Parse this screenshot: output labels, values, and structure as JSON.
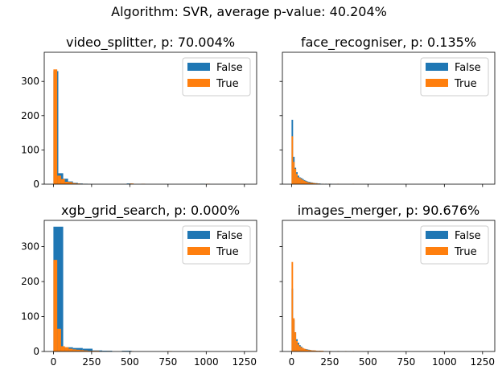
{
  "figure": {
    "suptitle": "Algorithm: SVR, average p-value: 40.204%"
  },
  "colors": {
    "false": "#1f77b4",
    "true": "#ff7f0e"
  },
  "chart_data": [
    {
      "type": "bar",
      "title": "video_splitter, p: 70.004%",
      "xlim": [
        -60,
        1330
      ],
      "ylim": [
        0,
        385
      ],
      "xticks": [
        0,
        250,
        500,
        750,
        1000,
        1250
      ],
      "yticks": [
        0,
        100,
        200,
        300
      ],
      "show_xticklabels": false,
      "show_yticklabels": true,
      "legend_position": "upper right",
      "series": [
        {
          "name": "False",
          "color": "#1f77b4",
          "bin_width": 32,
          "bins": [
            [
              0,
              330
            ],
            [
              32,
              32
            ],
            [
              64,
              16
            ],
            [
              96,
              8
            ],
            [
              128,
              4
            ],
            [
              160,
              2
            ],
            [
              192,
              1
            ],
            [
              480,
              2
            ],
            [
              960,
              1
            ]
          ]
        },
        {
          "name": "True",
          "color": "#ff7f0e",
          "bin_width": 25,
          "bins": [
            [
              0,
              335
            ],
            [
              25,
              25
            ],
            [
              50,
              15
            ],
            [
              75,
              7
            ],
            [
              100,
              6
            ],
            [
              125,
              3
            ],
            [
              150,
              2
            ],
            [
              175,
              1
            ],
            [
              500,
              2
            ],
            [
              575,
              1
            ],
            [
              1000,
              1
            ]
          ]
        }
      ]
    },
    {
      "type": "bar",
      "title": "face_recogniser, p: 0.135%",
      "xlim": [
        -60,
        1330
      ],
      "ylim": [
        0,
        385
      ],
      "xticks": [
        0,
        250,
        500,
        750,
        1000,
        1250
      ],
      "yticks": [
        0,
        100,
        200,
        300
      ],
      "show_xticklabels": false,
      "show_yticklabels": false,
      "legend_position": "upper right",
      "series": [
        {
          "name": "False",
          "color": "#1f77b4",
          "bin_width": 10,
          "bins": [
            [
              0,
              188
            ],
            [
              10,
              80
            ],
            [
              20,
              48
            ],
            [
              30,
              35
            ],
            [
              40,
              25
            ],
            [
              50,
              20
            ],
            [
              60,
              18
            ],
            [
              70,
              15
            ],
            [
              80,
              12
            ],
            [
              90,
              10
            ],
            [
              100,
              8
            ],
            [
              110,
              7
            ],
            [
              120,
              6
            ],
            [
              130,
              5
            ],
            [
              140,
              4
            ],
            [
              150,
              3
            ],
            [
              160,
              3
            ],
            [
              170,
              2
            ],
            [
              180,
              2
            ],
            [
              190,
              1
            ],
            [
              200,
              1
            ],
            [
              220,
              1
            ],
            [
              250,
              1
            ]
          ]
        },
        {
          "name": "True",
          "color": "#ff7f0e",
          "bin_width": 10,
          "bins": [
            [
              0,
              140
            ],
            [
              10,
              65
            ],
            [
              20,
              45
            ],
            [
              30,
              30
            ],
            [
              40,
              20
            ],
            [
              50,
              18
            ],
            [
              60,
              15
            ],
            [
              70,
              12
            ],
            [
              80,
              10
            ],
            [
              90,
              8
            ],
            [
              100,
              6
            ],
            [
              110,
              5
            ],
            [
              120,
              4
            ],
            [
              130,
              4
            ],
            [
              140,
              3
            ],
            [
              150,
              3
            ],
            [
              160,
              2
            ],
            [
              170,
              2
            ],
            [
              180,
              1
            ],
            [
              200,
              1
            ],
            [
              240,
              1
            ],
            [
              300,
              1
            ],
            [
              400,
              1
            ]
          ]
        }
      ]
    },
    {
      "type": "bar",
      "title": "xgb_grid_search, p: 0.000%",
      "xlim": [
        -60,
        1330
      ],
      "ylim": [
        0,
        375
      ],
      "xticks": [
        0,
        250,
        500,
        750,
        1000,
        1250
      ],
      "yticks": [
        0,
        100,
        200,
        300
      ],
      "show_xticklabels": true,
      "show_yticklabels": true,
      "legend_position": "upper right",
      "series": [
        {
          "name": "False",
          "color": "#1f77b4",
          "bin_width": 64,
          "bins": [
            [
              0,
              357
            ],
            [
              64,
              12
            ],
            [
              128,
              10
            ],
            [
              192,
              8
            ],
            [
              256,
              3
            ],
            [
              320,
              2
            ],
            [
              448,
              2
            ]
          ]
        },
        {
          "name": "True",
          "color": "#ff7f0e",
          "bin_width": 25,
          "bins": [
            [
              0,
              262
            ],
            [
              25,
              65
            ],
            [
              50,
              15
            ],
            [
              75,
              12
            ],
            [
              100,
              8
            ],
            [
              125,
              6
            ],
            [
              150,
              5
            ],
            [
              175,
              4
            ],
            [
              200,
              3
            ],
            [
              225,
              2
            ],
            [
              250,
              2
            ],
            [
              275,
              2
            ],
            [
              300,
              1
            ],
            [
              350,
              1
            ],
            [
              450,
              1
            ],
            [
              500,
              1
            ],
            [
              750,
              1
            ]
          ]
        }
      ]
    },
    {
      "type": "bar",
      "title": "images_merger, p: 90.676%",
      "xlim": [
        -60,
        1330
      ],
      "ylim": [
        0,
        375
      ],
      "xticks": [
        0,
        250,
        500,
        750,
        1000,
        1250
      ],
      "yticks": [
        0,
        100,
        200,
        300
      ],
      "show_xticklabels": true,
      "show_yticklabels": false,
      "legend_position": "upper right",
      "series": [
        {
          "name": "False",
          "color": "#1f77b4",
          "bin_width": 10,
          "bins": [
            [
              0,
              180
            ],
            [
              10,
              90
            ],
            [
              20,
              55
            ],
            [
              30,
              35
            ],
            [
              40,
              25
            ],
            [
              50,
              18
            ],
            [
              60,
              14
            ],
            [
              70,
              10
            ],
            [
              80,
              8
            ],
            [
              90,
              7
            ],
            [
              100,
              6
            ],
            [
              110,
              5
            ],
            [
              120,
              4
            ],
            [
              130,
              3
            ],
            [
              140,
              3
            ],
            [
              150,
              2
            ],
            [
              160,
              2
            ],
            [
              180,
              2
            ],
            [
              200,
              1
            ],
            [
              250,
              1
            ],
            [
              300,
              1
            ]
          ]
        },
        {
          "name": "True",
          "color": "#ff7f0e",
          "bin_width": 10,
          "bins": [
            [
              0,
              256
            ],
            [
              10,
              95
            ],
            [
              20,
              55
            ],
            [
              30,
              30
            ],
            [
              40,
              20
            ],
            [
              50,
              15
            ],
            [
              60,
              12
            ],
            [
              70,
              10
            ],
            [
              80,
              8
            ],
            [
              90,
              6
            ],
            [
              100,
              5
            ],
            [
              110,
              4
            ],
            [
              120,
              4
            ],
            [
              130,
              3
            ],
            [
              140,
              3
            ],
            [
              150,
              3
            ],
            [
              160,
              2
            ],
            [
              170,
              2
            ],
            [
              180,
              2
            ],
            [
              190,
              2
            ],
            [
              200,
              2
            ],
            [
              220,
              1
            ],
            [
              250,
              1
            ],
            [
              300,
              1
            ],
            [
              350,
              1
            ],
            [
              400,
              1
            ]
          ]
        }
      ]
    }
  ]
}
